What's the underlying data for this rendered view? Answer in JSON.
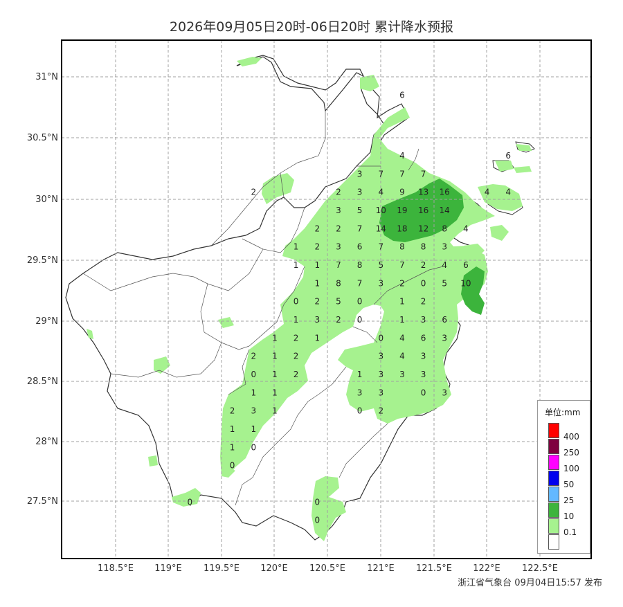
{
  "title": "2026年09月05日20时-06日20时 累计降水预报",
  "footer": "浙江省气象台 09月04日15:57 发布",
  "lat_labels": [
    "31°N",
    "30.5°N",
    "30°N",
    "29.5°N",
    "29°N",
    "28.5°N",
    "28°N",
    "27.5°N"
  ],
  "lon_labels": [
    "118.5°E",
    "119°E",
    "119.5°E",
    "120°E",
    "120.5°E",
    "121°E",
    "121.5°E",
    "122°E",
    "122.5°E"
  ],
  "legend": {
    "title": "单位:mm",
    "items": [
      {
        "label": "400",
        "color": "#ff0000"
      },
      {
        "label": "250",
        "color": "#7f0040"
      },
      {
        "label": "100",
        "color": "#ff00ff"
      },
      {
        "label": "50",
        "color": "#0000ee"
      },
      {
        "label": "25",
        "color": "#63b8ff"
      },
      {
        "label": "10",
        "color": "#3cb43c"
      },
      {
        "label": "0.1",
        "color": "#a6f28f"
      },
      {
        "label": "",
        "color": "#ffffff"
      }
    ]
  },
  "colors": {
    "light_green": "#a6f28f",
    "dark_green": "#3cb43c",
    "grid": "#a0a0a0",
    "border": "#333333"
  },
  "values": [
    {
      "lon": 121.2,
      "lat": 30.85,
      "v": "6"
    },
    {
      "lon": 121.2,
      "lat": 30.35,
      "v": "4"
    },
    {
      "lon": 122.2,
      "lat": 30.35,
      "v": "6"
    },
    {
      "lon": 120.8,
      "lat": 30.2,
      "v": "3"
    },
    {
      "lon": 121.0,
      "lat": 30.2,
      "v": "7"
    },
    {
      "lon": 121.2,
      "lat": 30.2,
      "v": "7"
    },
    {
      "lon": 121.4,
      "lat": 30.2,
      "v": "7"
    },
    {
      "lon": 119.8,
      "lat": 30.05,
      "v": "2"
    },
    {
      "lon": 120.6,
      "lat": 30.05,
      "v": "2"
    },
    {
      "lon": 120.8,
      "lat": 30.05,
      "v": "3"
    },
    {
      "lon": 121.0,
      "lat": 30.05,
      "v": "4"
    },
    {
      "lon": 121.2,
      "lat": 30.05,
      "v": "9"
    },
    {
      "lon": 121.4,
      "lat": 30.05,
      "v": "13"
    },
    {
      "lon": 121.6,
      "lat": 30.05,
      "v": "16"
    },
    {
      "lon": 122.0,
      "lat": 30.05,
      "v": "4"
    },
    {
      "lon": 122.2,
      "lat": 30.05,
      "v": "4"
    },
    {
      "lon": 120.6,
      "lat": 29.9,
      "v": "3"
    },
    {
      "lon": 120.8,
      "lat": 29.9,
      "v": "5"
    },
    {
      "lon": 121.0,
      "lat": 29.9,
      "v": "10"
    },
    {
      "lon": 121.2,
      "lat": 29.9,
      "v": "19"
    },
    {
      "lon": 121.4,
      "lat": 29.9,
      "v": "16"
    },
    {
      "lon": 121.6,
      "lat": 29.9,
      "v": "14"
    },
    {
      "lon": 120.4,
      "lat": 29.75,
      "v": "2"
    },
    {
      "lon": 120.6,
      "lat": 29.75,
      "v": "2"
    },
    {
      "lon": 120.8,
      "lat": 29.75,
      "v": "7"
    },
    {
      "lon": 121.0,
      "lat": 29.75,
      "v": "14"
    },
    {
      "lon": 121.2,
      "lat": 29.75,
      "v": "18"
    },
    {
      "lon": 121.4,
      "lat": 29.75,
      "v": "12"
    },
    {
      "lon": 121.6,
      "lat": 29.75,
      "v": "8"
    },
    {
      "lon": 121.8,
      "lat": 29.75,
      "v": "4"
    },
    {
      "lon": 120.2,
      "lat": 29.6,
      "v": "1"
    },
    {
      "lon": 120.4,
      "lat": 29.6,
      "v": "2"
    },
    {
      "lon": 120.6,
      "lat": 29.6,
      "v": "3"
    },
    {
      "lon": 120.8,
      "lat": 29.6,
      "v": "6"
    },
    {
      "lon": 121.0,
      "lat": 29.6,
      "v": "7"
    },
    {
      "lon": 121.2,
      "lat": 29.6,
      "v": "8"
    },
    {
      "lon": 121.4,
      "lat": 29.6,
      "v": "8"
    },
    {
      "lon": 121.6,
      "lat": 29.6,
      "v": "3"
    },
    {
      "lon": 120.2,
      "lat": 29.45,
      "v": "1"
    },
    {
      "lon": 120.4,
      "lat": 29.45,
      "v": "1"
    },
    {
      "lon": 120.6,
      "lat": 29.45,
      "v": "7"
    },
    {
      "lon": 120.8,
      "lat": 29.45,
      "v": "8"
    },
    {
      "lon": 121.0,
      "lat": 29.45,
      "v": "5"
    },
    {
      "lon": 121.2,
      "lat": 29.45,
      "v": "7"
    },
    {
      "lon": 121.4,
      "lat": 29.45,
      "v": "2"
    },
    {
      "lon": 121.6,
      "lat": 29.45,
      "v": "4"
    },
    {
      "lon": 121.8,
      "lat": 29.45,
      "v": "6"
    },
    {
      "lon": 120.4,
      "lat": 29.3,
      "v": "1"
    },
    {
      "lon": 120.6,
      "lat": 29.3,
      "v": "8"
    },
    {
      "lon": 120.8,
      "lat": 29.3,
      "v": "7"
    },
    {
      "lon": 121.0,
      "lat": 29.3,
      "v": "3"
    },
    {
      "lon": 121.2,
      "lat": 29.3,
      "v": "2"
    },
    {
      "lon": 121.4,
      "lat": 29.3,
      "v": "0"
    },
    {
      "lon": 121.6,
      "lat": 29.3,
      "v": "5"
    },
    {
      "lon": 121.8,
      "lat": 29.3,
      "v": "10"
    },
    {
      "lon": 120.2,
      "lat": 29.15,
      "v": "0"
    },
    {
      "lon": 120.4,
      "lat": 29.15,
      "v": "2"
    },
    {
      "lon": 120.6,
      "lat": 29.15,
      "v": "5"
    },
    {
      "lon": 120.8,
      "lat": 29.15,
      "v": "0"
    },
    {
      "lon": 121.2,
      "lat": 29.15,
      "v": "1"
    },
    {
      "lon": 121.4,
      "lat": 29.15,
      "v": "2"
    },
    {
      "lon": 120.2,
      "lat": 29.0,
      "v": "1"
    },
    {
      "lon": 120.4,
      "lat": 29.0,
      "v": "3"
    },
    {
      "lon": 120.6,
      "lat": 29.0,
      "v": "2"
    },
    {
      "lon": 120.8,
      "lat": 29.0,
      "v": "0"
    },
    {
      "lon": 121.2,
      "lat": 29.0,
      "v": "1"
    },
    {
      "lon": 121.4,
      "lat": 29.0,
      "v": "3"
    },
    {
      "lon": 121.6,
      "lat": 29.0,
      "v": "6"
    },
    {
      "lon": 120.0,
      "lat": 28.85,
      "v": "1"
    },
    {
      "lon": 120.2,
      "lat": 28.85,
      "v": "2"
    },
    {
      "lon": 120.4,
      "lat": 28.85,
      "v": "1"
    },
    {
      "lon": 121.0,
      "lat": 28.85,
      "v": "0"
    },
    {
      "lon": 121.2,
      "lat": 28.85,
      "v": "4"
    },
    {
      "lon": 121.4,
      "lat": 28.85,
      "v": "6"
    },
    {
      "lon": 121.6,
      "lat": 28.85,
      "v": "3"
    },
    {
      "lon": 119.8,
      "lat": 28.7,
      "v": "2"
    },
    {
      "lon": 120.0,
      "lat": 28.7,
      "v": "1"
    },
    {
      "lon": 120.2,
      "lat": 28.7,
      "v": "2"
    },
    {
      "lon": 121.0,
      "lat": 28.7,
      "v": "3"
    },
    {
      "lon": 121.2,
      "lat": 28.7,
      "v": "4"
    },
    {
      "lon": 121.4,
      "lat": 28.7,
      "v": "3"
    },
    {
      "lon": 119.8,
      "lat": 28.55,
      "v": "0"
    },
    {
      "lon": 120.0,
      "lat": 28.55,
      "v": "1"
    },
    {
      "lon": 120.2,
      "lat": 28.55,
      "v": "2"
    },
    {
      "lon": 120.8,
      "lat": 28.55,
      "v": "1"
    },
    {
      "lon": 121.0,
      "lat": 28.55,
      "v": "3"
    },
    {
      "lon": 121.2,
      "lat": 28.55,
      "v": "3"
    },
    {
      "lon": 121.4,
      "lat": 28.55,
      "v": "3"
    },
    {
      "lon": 119.8,
      "lat": 28.4,
      "v": "1"
    },
    {
      "lon": 120.0,
      "lat": 28.4,
      "v": "1"
    },
    {
      "lon": 120.8,
      "lat": 28.4,
      "v": "3"
    },
    {
      "lon": 121.0,
      "lat": 28.4,
      "v": "3"
    },
    {
      "lon": 121.4,
      "lat": 28.4,
      "v": "0"
    },
    {
      "lon": 121.6,
      "lat": 28.4,
      "v": "3"
    },
    {
      "lon": 119.6,
      "lat": 28.25,
      "v": "2"
    },
    {
      "lon": 119.8,
      "lat": 28.25,
      "v": "3"
    },
    {
      "lon": 120.0,
      "lat": 28.25,
      "v": "1"
    },
    {
      "lon": 120.8,
      "lat": 28.25,
      "v": "0"
    },
    {
      "lon": 121.0,
      "lat": 28.25,
      "v": "2"
    },
    {
      "lon": 119.6,
      "lat": 28.1,
      "v": "1"
    },
    {
      "lon": 119.8,
      "lat": 28.1,
      "v": "1"
    },
    {
      "lon": 119.6,
      "lat": 27.95,
      "v": "1"
    },
    {
      "lon": 119.8,
      "lat": 27.95,
      "v": "0"
    },
    {
      "lon": 119.6,
      "lat": 27.8,
      "v": "0"
    },
    {
      "lon": 119.2,
      "lat": 27.5,
      "v": "0"
    },
    {
      "lon": 120.4,
      "lat": 27.5,
      "v": "0"
    },
    {
      "lon": 120.4,
      "lat": 27.35,
      "v": "0"
    }
  ]
}
